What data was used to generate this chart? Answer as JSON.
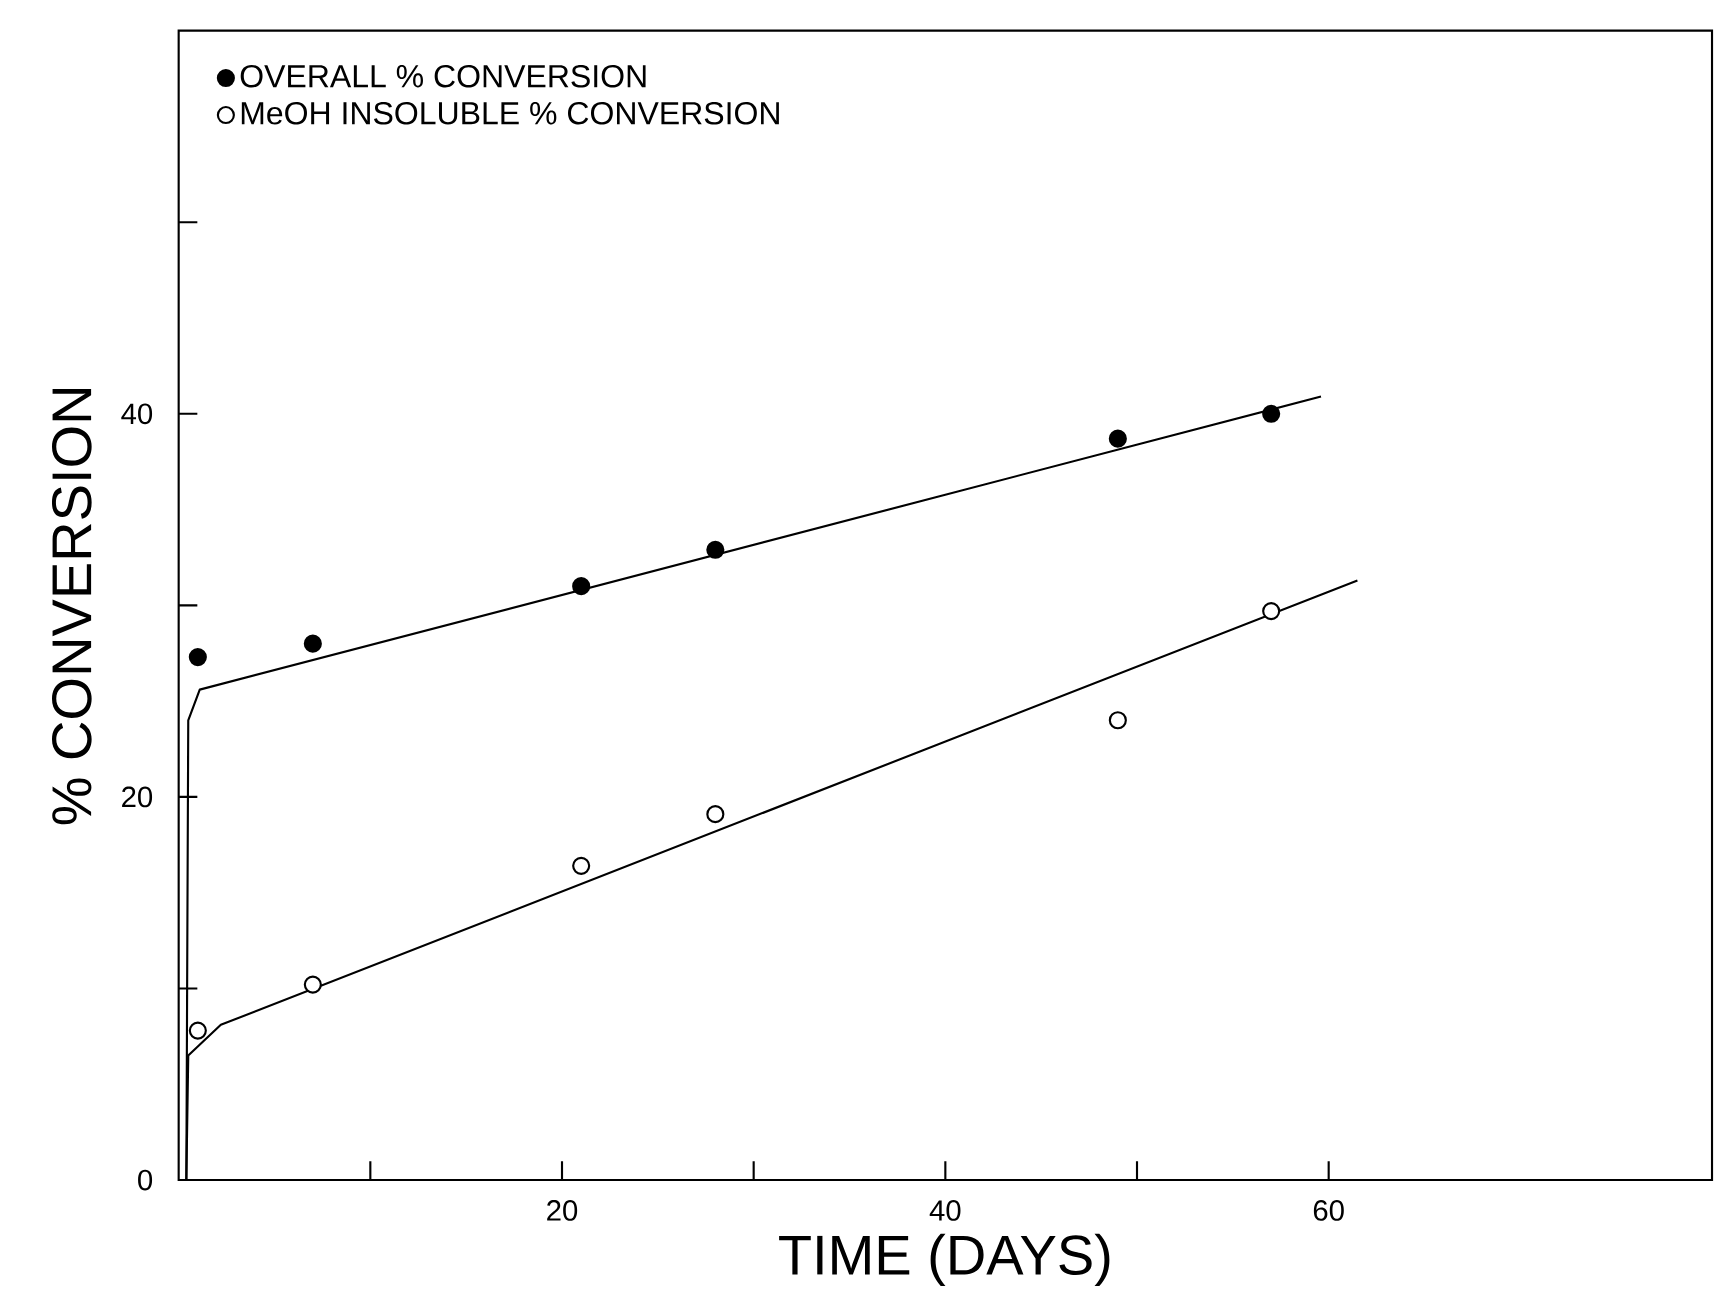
{
  "chart_data": {
    "type": "scatter",
    "xlabel": "TIME (DAYS)",
    "ylabel": "% CONVERSION",
    "xlim": [
      0,
      80
    ],
    "ylim": [
      0,
      60
    ],
    "xticks": [
      {
        "value": 10,
        "label": null
      },
      20,
      {
        "value": 30,
        "label": null
      },
      40,
      {
        "value": 50,
        "label": null
      },
      60
    ],
    "yticks": [
      0,
      {
        "value": 10,
        "label": null
      },
      20,
      {
        "value": 30,
        "label": null
      },
      40,
      {
        "value": 50,
        "label": null
      }
    ],
    "legend": "top left",
    "grid": false,
    "series": [
      {
        "name": "OVERALL % CONVERSION",
        "color": "#000000",
        "marker": "circle",
        "x": [
          1,
          7,
          21,
          28,
          49,
          57
        ],
        "values": [
          27.3,
          28.0,
          31.0,
          32.9,
          38.7,
          40.0
        ]
      },
      {
        "name": "MeOH INSOLUBLE % CONVERSION",
        "color": "#000000",
        "marker": "circle",
        "x": [
          1,
          7,
          21,
          28,
          49,
          57
        ],
        "values": [
          7.8,
          10.2,
          16.4,
          19.1,
          24.0,
          29.7
        ]
      },
      {
        "type": "line",
        "color": "#000000",
        "line_style": "solid",
        "marker": "none",
        "x": [
          0.4,
          0.5,
          1.1,
          59.6
        ],
        "values": [
          0,
          24,
          25.6,
          40.9
        ]
      },
      {
        "type": "line",
        "color": "#000000",
        "line_style": "solid",
        "marker": "none",
        "x": [
          0.4,
          0.5,
          2.2,
          61.5
        ],
        "values": [
          0,
          6.5,
          8.1,
          31.3
        ]
      }
    ]
  }
}
